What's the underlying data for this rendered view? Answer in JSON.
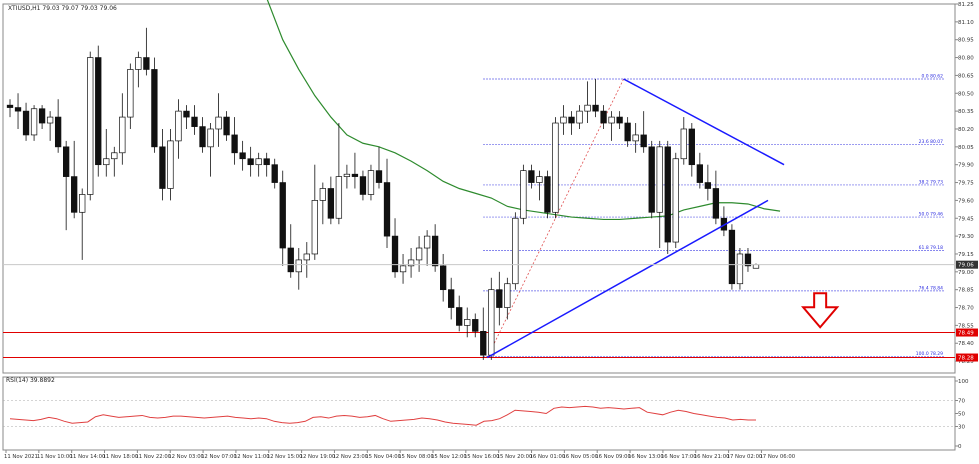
{
  "chart_data": {
    "type": "candlestick",
    "symbol_header": "XTIUSD,H1  79.03 79.07 79.03 79.06",
    "price_axis": {
      "ylim": [
        78.15,
        81.25
      ],
      "ticks": [
        "81.25",
        "81.10",
        "80.95",
        "80.80",
        "80.65",
        "80.50",
        "80.35",
        "80.20",
        "80.05",
        "79.90",
        "79.75",
        "79.60",
        "79.45",
        "79.30",
        "79.15",
        "79.00",
        "78.85",
        "78.70",
        "78.55",
        "78.40",
        "78.25"
      ]
    },
    "current_price": {
      "label": "79.06",
      "value": 79.06,
      "color": "#333333"
    },
    "x_ticks": [
      "11 Nov 2021",
      "11 Nov 10:00",
      "11 Nov 14:00",
      "11 Nov 18:00",
      "11 Nov 22:00",
      "12 Nov 03:00",
      "12 Nov 07:00",
      "12 Nov 11:00",
      "12 Nov 15:00",
      "12 Nov 19:00",
      "12 Nov 23:00",
      "15 Nov 04:00",
      "15 Nov 08:00",
      "15 Nov 12:00",
      "15 Nov 16:00",
      "15 Nov 20:00",
      "16 Nov 01:00",
      "16 Nov 05:00",
      "16 Nov 09:00",
      "16 Nov 13:00",
      "16 Nov 17:00",
      "16 Nov 21:00",
      "17 Nov 02:00",
      "17 Nov 06:00"
    ],
    "candles": [
      {
        "o": 80.4,
        "h": 80.45,
        "l": 80.3,
        "c": 80.38
      },
      {
        "o": 80.38,
        "h": 80.5,
        "l": 80.2,
        "c": 80.35
      },
      {
        "o": 80.35,
        "h": 80.42,
        "l": 80.1,
        "c": 80.15
      },
      {
        "o": 80.15,
        "h": 80.4,
        "l": 80.1,
        "c": 80.37
      },
      {
        "o": 80.37,
        "h": 80.4,
        "l": 80.2,
        "c": 80.25
      },
      {
        "o": 80.25,
        "h": 80.35,
        "l": 80.1,
        "c": 80.3
      },
      {
        "o": 80.3,
        "h": 80.45,
        "l": 80.0,
        "c": 80.05
      },
      {
        "o": 80.05,
        "h": 80.1,
        "l": 79.35,
        "c": 79.8
      },
      {
        "o": 79.8,
        "h": 80.1,
        "l": 79.45,
        "c": 79.5
      },
      {
        "o": 79.5,
        "h": 79.7,
        "l": 79.1,
        "c": 79.65
      },
      {
        "o": 79.65,
        "h": 80.85,
        "l": 79.6,
        "c": 80.8
      },
      {
        "o": 80.8,
        "h": 80.9,
        "l": 79.8,
        "c": 79.9
      },
      {
        "o": 79.9,
        "h": 80.2,
        "l": 79.8,
        "c": 79.95
      },
      {
        "o": 79.95,
        "h": 80.05,
        "l": 79.8,
        "c": 80.0
      },
      {
        "o": 80.0,
        "h": 80.5,
        "l": 79.9,
        "c": 80.3
      },
      {
        "o": 80.3,
        "h": 80.75,
        "l": 80.2,
        "c": 80.7
      },
      {
        "o": 80.7,
        "h": 80.85,
        "l": 80.55,
        "c": 80.8
      },
      {
        "o": 80.8,
        "h": 81.05,
        "l": 80.65,
        "c": 80.7
      },
      {
        "o": 80.7,
        "h": 80.8,
        "l": 80.0,
        "c": 80.05
      },
      {
        "o": 80.05,
        "h": 80.2,
        "l": 79.6,
        "c": 79.7
      },
      {
        "o": 79.7,
        "h": 80.2,
        "l": 79.6,
        "c": 80.1
      },
      {
        "o": 80.1,
        "h": 80.45,
        "l": 79.95,
        "c": 80.35
      },
      {
        "o": 80.35,
        "h": 80.4,
        "l": 80.2,
        "c": 80.3
      },
      {
        "o": 80.3,
        "h": 80.4,
        "l": 80.15,
        "c": 80.22
      },
      {
        "o": 80.22,
        "h": 80.3,
        "l": 80.0,
        "c": 80.05
      },
      {
        "o": 80.05,
        "h": 80.25,
        "l": 79.8,
        "c": 80.2
      },
      {
        "o": 80.2,
        "h": 80.5,
        "l": 80.05,
        "c": 80.3
      },
      {
        "o": 80.3,
        "h": 80.35,
        "l": 80.1,
        "c": 80.15
      },
      {
        "o": 80.15,
        "h": 80.3,
        "l": 79.9,
        "c": 80.0
      },
      {
        "o": 80.0,
        "h": 80.1,
        "l": 79.85,
        "c": 79.95
      },
      {
        "o": 79.95,
        "h": 80.05,
        "l": 79.8,
        "c": 79.9
      },
      {
        "o": 79.9,
        "h": 80.0,
        "l": 79.8,
        "c": 79.95
      },
      {
        "o": 79.95,
        "h": 80.0,
        "l": 79.8,
        "c": 79.9
      },
      {
        "o": 79.9,
        "h": 79.95,
        "l": 79.7,
        "c": 79.75
      },
      {
        "o": 79.75,
        "h": 79.85,
        "l": 79.05,
        "c": 79.2
      },
      {
        "o": 79.2,
        "h": 79.4,
        "l": 78.95,
        "c": 79.0
      },
      {
        "o": 79.0,
        "h": 79.2,
        "l": 78.85,
        "c": 79.1
      },
      {
        "o": 79.1,
        "h": 79.25,
        "l": 78.95,
        "c": 79.15
      },
      {
        "o": 79.15,
        "h": 79.9,
        "l": 79.1,
        "c": 79.6
      },
      {
        "o": 79.6,
        "h": 79.75,
        "l": 79.4,
        "c": 79.7
      },
      {
        "o": 79.7,
        "h": 79.8,
        "l": 79.4,
        "c": 79.45
      },
      {
        "o": 79.45,
        "h": 80.25,
        "l": 79.4,
        "c": 79.8
      },
      {
        "o": 79.8,
        "h": 79.9,
        "l": 79.7,
        "c": 79.82
      },
      {
        "o": 79.82,
        "h": 80.0,
        "l": 79.7,
        "c": 79.8
      },
      {
        "o": 79.8,
        "h": 79.85,
        "l": 79.6,
        "c": 79.65
      },
      {
        "o": 79.65,
        "h": 79.9,
        "l": 79.6,
        "c": 79.85
      },
      {
        "o": 79.85,
        "h": 80.05,
        "l": 79.7,
        "c": 79.75
      },
      {
        "o": 79.75,
        "h": 79.95,
        "l": 79.2,
        "c": 79.3
      },
      {
        "o": 79.3,
        "h": 79.45,
        "l": 78.95,
        "c": 79.0
      },
      {
        "o": 79.0,
        "h": 79.15,
        "l": 78.9,
        "c": 79.05
      },
      {
        "o": 79.05,
        "h": 79.2,
        "l": 78.95,
        "c": 79.1
      },
      {
        "o": 79.1,
        "h": 79.3,
        "l": 79.0,
        "c": 79.2
      },
      {
        "o": 79.2,
        "h": 79.35,
        "l": 79.05,
        "c": 79.3
      },
      {
        "o": 79.3,
        "h": 79.4,
        "l": 79.0,
        "c": 79.05
      },
      {
        "o": 79.05,
        "h": 79.15,
        "l": 78.75,
        "c": 78.85
      },
      {
        "o": 78.85,
        "h": 78.95,
        "l": 78.6,
        "c": 78.7
      },
      {
        "o": 78.7,
        "h": 78.8,
        "l": 78.5,
        "c": 78.55
      },
      {
        "o": 78.55,
        "h": 78.7,
        "l": 78.45,
        "c": 78.6
      },
      {
        "o": 78.6,
        "h": 78.65,
        "l": 78.45,
        "c": 78.5
      },
      {
        "o": 78.5,
        "h": 78.7,
        "l": 78.26,
        "c": 78.3
      },
      {
        "o": 78.3,
        "h": 78.95,
        "l": 78.26,
        "c": 78.85
      },
      {
        "o": 78.85,
        "h": 79.0,
        "l": 78.55,
        "c": 78.7
      },
      {
        "o": 78.7,
        "h": 78.95,
        "l": 78.6,
        "c": 78.9
      },
      {
        "o": 78.9,
        "h": 79.5,
        "l": 78.85,
        "c": 79.45
      },
      {
        "o": 79.45,
        "h": 79.9,
        "l": 79.4,
        "c": 79.85
      },
      {
        "o": 79.85,
        "h": 79.9,
        "l": 79.7,
        "c": 79.75
      },
      {
        "o": 79.75,
        "h": 79.85,
        "l": 79.6,
        "c": 79.8
      },
      {
        "o": 79.8,
        "h": 79.85,
        "l": 79.45,
        "c": 79.5
      },
      {
        "o": 79.5,
        "h": 80.3,
        "l": 79.45,
        "c": 80.25
      },
      {
        "o": 80.25,
        "h": 80.4,
        "l": 80.15,
        "c": 80.3
      },
      {
        "o": 80.3,
        "h": 80.35,
        "l": 80.15,
        "c": 80.25
      },
      {
        "o": 80.25,
        "h": 80.4,
        "l": 80.2,
        "c": 80.35
      },
      {
        "o": 80.35,
        "h": 80.6,
        "l": 80.25,
        "c": 80.4
      },
      {
        "o": 80.4,
        "h": 80.62,
        "l": 80.3,
        "c": 80.35
      },
      {
        "o": 80.35,
        "h": 80.4,
        "l": 80.2,
        "c": 80.25
      },
      {
        "o": 80.25,
        "h": 80.35,
        "l": 80.1,
        "c": 80.3
      },
      {
        "o": 80.3,
        "h": 80.35,
        "l": 80.2,
        "c": 80.25
      },
      {
        "o": 80.25,
        "h": 80.3,
        "l": 80.05,
        "c": 80.1
      },
      {
        "o": 80.1,
        "h": 80.25,
        "l": 80.0,
        "c": 80.15
      },
      {
        "o": 80.15,
        "h": 80.35,
        "l": 80.0,
        "c": 80.05
      },
      {
        "o": 80.05,
        "h": 80.1,
        "l": 79.45,
        "c": 79.5
      },
      {
        "o": 79.5,
        "h": 80.1,
        "l": 79.2,
        "c": 80.05
      },
      {
        "o": 80.05,
        "h": 80.1,
        "l": 79.15,
        "c": 79.25
      },
      {
        "o": 79.25,
        "h": 80.0,
        "l": 79.2,
        "c": 79.95
      },
      {
        "o": 79.95,
        "h": 80.3,
        "l": 79.9,
        "c": 80.2
      },
      {
        "o": 80.2,
        "h": 80.25,
        "l": 79.8,
        "c": 79.9
      },
      {
        "o": 79.9,
        "h": 80.0,
        "l": 79.7,
        "c": 79.75
      },
      {
        "o": 79.75,
        "h": 79.9,
        "l": 79.6,
        "c": 79.7
      },
      {
        "o": 79.7,
        "h": 79.85,
        "l": 79.4,
        "c": 79.45
      },
      {
        "o": 79.45,
        "h": 79.55,
        "l": 79.3,
        "c": 79.35
      },
      {
        "o": 79.35,
        "h": 79.4,
        "l": 78.85,
        "c": 78.9
      },
      {
        "o": 78.9,
        "h": 79.2,
        "l": 78.85,
        "c": 79.15
      },
      {
        "o": 79.15,
        "h": 79.2,
        "l": 79.0,
        "c": 79.05
      },
      {
        "o": 79.03,
        "h": 79.07,
        "l": 79.03,
        "c": 79.06
      }
    ],
    "moving_average": {
      "color": "#2e8b2e",
      "points": [
        [
          32,
          81.3
        ],
        [
          34,
          80.95
        ],
        [
          36,
          80.7
        ],
        [
          38,
          80.48
        ],
        [
          40,
          80.3
        ],
        [
          42,
          80.15
        ],
        [
          44,
          80.08
        ],
        [
          46,
          80.05
        ],
        [
          48,
          80.0
        ],
        [
          50,
          79.93
        ],
        [
          52,
          79.85
        ],
        [
          54,
          79.76
        ],
        [
          56,
          79.7
        ],
        [
          58,
          79.66
        ],
        [
          60,
          79.62
        ],
        [
          62,
          79.55
        ],
        [
          64,
          79.52
        ],
        [
          66,
          79.5
        ],
        [
          68,
          79.48
        ],
        [
          70,
          79.46
        ],
        [
          72,
          79.45
        ],
        [
          74,
          79.44
        ],
        [
          76,
          79.44
        ],
        [
          78,
          79.45
        ],
        [
          80,
          79.46
        ],
        [
          82,
          79.47
        ],
        [
          84,
          79.52
        ],
        [
          86,
          79.55
        ],
        [
          88,
          79.58
        ],
        [
          90,
          79.58
        ],
        [
          92,
          79.57
        ],
        [
          94,
          79.53
        ],
        [
          96,
          79.51
        ]
      ]
    },
    "fibonacci": {
      "color": "#2b2be0",
      "levels": [
        {
          "label": "0.0 80.62",
          "value": 80.62
        },
        {
          "label": "23.6 80.07",
          "value": 80.07
        },
        {
          "label": "38.2 79.73",
          "value": 79.73
        },
        {
          "label": "50.0 79.46",
          "value": 79.46
        },
        {
          "label": "61.8 79.18",
          "value": 79.18
        },
        {
          "label": "76.4 78.84",
          "value": 78.84
        },
        {
          "label": "100.0 78.29",
          "value": 78.29
        }
      ]
    },
    "horizontal_lines": [
      {
        "label": "78.49",
        "value": 78.49,
        "color": "#e00000"
      },
      {
        "label": "78.28",
        "value": 78.28,
        "color": "#e00000"
      }
    ],
    "trend_lines": {
      "color": "#1a1aff",
      "lines": [
        {
          "name": "rising-support",
          "from": [
            59.5,
            78.28
          ],
          "to": [
            94.5,
            79.6
          ]
        },
        {
          "name": "falling-resistance",
          "from": [
            76.5,
            80.62
          ],
          "to": [
            96.5,
            79.9
          ]
        }
      ]
    },
    "fib_anchor_line": {
      "color": "#e05050",
      "from": [
        59.5,
        78.28
      ],
      "to": [
        76.5,
        80.62
      ]
    },
    "arrow": {
      "color": "#e00000",
      "direction": "down",
      "at": [
        101,
        78.82
      ]
    },
    "rsi": {
      "title": "RSI(14) 39.8892",
      "ticks": [
        "100",
        "70",
        "50",
        "30",
        "0"
      ],
      "levels": [
        70,
        30
      ],
      "color": "#e04040",
      "values": [
        42,
        41,
        40,
        39,
        41,
        44,
        42,
        38,
        35,
        36,
        37,
        45,
        48,
        46,
        44,
        45,
        46,
        47,
        44,
        43,
        44,
        46,
        46,
        45,
        44,
        43,
        44,
        45,
        46,
        44,
        43,
        42,
        43,
        42,
        38,
        36,
        35,
        36,
        38,
        44,
        45,
        43,
        46,
        47,
        46,
        44,
        45,
        47,
        42,
        38,
        39,
        40,
        41,
        43,
        42,
        40,
        37,
        35,
        34,
        33,
        32,
        38,
        39,
        42,
        48,
        55,
        54,
        53,
        52,
        50,
        58,
        60,
        59,
        60,
        61,
        60,
        58,
        59,
        58,
        57,
        58,
        59,
        52,
        50,
        48,
        52,
        55,
        53,
        50,
        48,
        46,
        44,
        43,
        40,
        41,
        40,
        40
      ]
    }
  }
}
